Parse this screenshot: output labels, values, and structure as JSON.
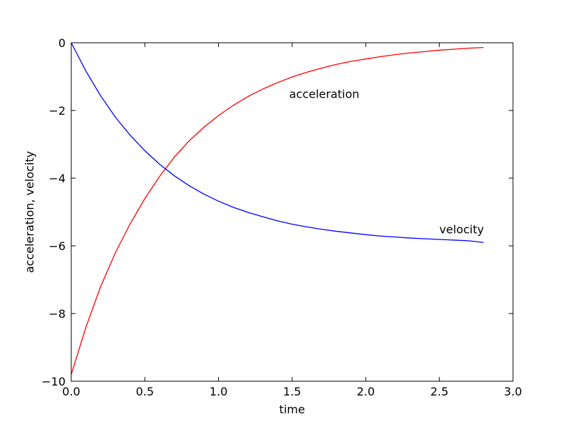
{
  "chart_data": {
    "type": "line",
    "xlabel": "time",
    "ylabel": "acceleration, velocity",
    "xlim": [
      0.0,
      3.0
    ],
    "ylim": [
      -10,
      0
    ],
    "grid": false,
    "x_ticks": [
      {
        "value": 0.0,
        "label": "0.0"
      },
      {
        "value": 0.5,
        "label": "0.5"
      },
      {
        "value": 1.0,
        "label": "1.0"
      },
      {
        "value": 1.5,
        "label": "1.5"
      },
      {
        "value": 2.0,
        "label": "2.0"
      },
      {
        "value": 2.5,
        "label": "2.5"
      },
      {
        "value": 3.0,
        "label": "3.0"
      }
    ],
    "y_ticks": [
      {
        "value": 0,
        "label": "0"
      },
      {
        "value": -2,
        "label": "−2"
      },
      {
        "value": -4,
        "label": "−4"
      },
      {
        "value": -6,
        "label": "−6"
      },
      {
        "value": -8,
        "label": "−8"
      },
      {
        "value": -10,
        "label": "−10"
      }
    ],
    "series": [
      {
        "key": "acceleration",
        "color": "#ff0000",
        "x": [
          0.0,
          0.1,
          0.2,
          0.3,
          0.4,
          0.5,
          0.6,
          0.7,
          0.8,
          0.9,
          1.0,
          1.1,
          1.2,
          1.3,
          1.4,
          1.5,
          1.6,
          1.7,
          1.8,
          1.9,
          2.0,
          2.1,
          2.2,
          2.3,
          2.4,
          2.5,
          2.6,
          2.7,
          2.8
        ],
        "y": [
          -9.8,
          -8.4,
          -7.2,
          -6.2,
          -5.35,
          -4.6,
          -3.95,
          -3.38,
          -2.9,
          -2.5,
          -2.15,
          -1.85,
          -1.59,
          -1.37,
          -1.18,
          -1.01,
          -0.87,
          -0.75,
          -0.64,
          -0.55,
          -0.48,
          -0.41,
          -0.35,
          -0.3,
          -0.26,
          -0.22,
          -0.19,
          -0.16,
          -0.14
        ]
      },
      {
        "key": "velocity",
        "color": "#0000ff",
        "x": [
          0.0,
          0.1,
          0.2,
          0.3,
          0.4,
          0.5,
          0.6,
          0.7,
          0.8,
          0.9,
          1.0,
          1.1,
          1.2,
          1.3,
          1.4,
          1.5,
          1.6,
          1.7,
          1.8,
          1.9,
          2.0,
          2.1,
          2.2,
          2.3,
          2.4,
          2.5,
          2.6,
          2.7,
          2.8
        ],
        "y": [
          0.0,
          -0.84,
          -1.57,
          -2.2,
          -2.73,
          -3.19,
          -3.59,
          -3.93,
          -4.22,
          -4.47,
          -4.68,
          -4.86,
          -5.01,
          -5.14,
          -5.26,
          -5.36,
          -5.44,
          -5.51,
          -5.57,
          -5.62,
          -5.67,
          -5.71,
          -5.74,
          -5.77,
          -5.79,
          -5.81,
          -5.83,
          -5.85,
          -5.9
        ]
      }
    ],
    "annotations": [
      {
        "text": "acceleration",
        "x": 1.48,
        "y": -1.5
      },
      {
        "text": "velocity",
        "x": 2.5,
        "y": -5.5
      }
    ]
  }
}
